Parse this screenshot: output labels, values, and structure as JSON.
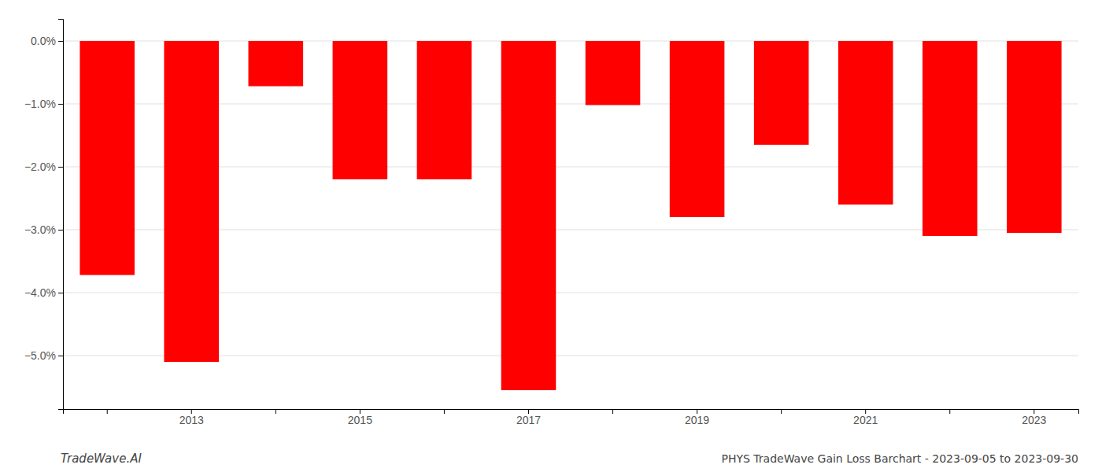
{
  "chart_data": {
    "type": "bar",
    "categories": [
      null,
      "2013",
      null,
      "2015",
      null,
      "2017",
      null,
      "2019",
      null,
      "2021",
      null,
      "2023"
    ],
    "values": [
      -3.72,
      -5.1,
      -0.72,
      -2.2,
      -2.2,
      -5.55,
      -1.02,
      -2.8,
      -1.65,
      -2.6,
      -3.1,
      -3.05
    ],
    "color": "#FF0000",
    "ylim": [
      -5.85,
      0.35
    ],
    "yticks": [
      {
        "value": 0.0,
        "label": "0.0%"
      },
      {
        "value": -1.0,
        "label": "−1.0%"
      },
      {
        "value": -2.0,
        "label": "−2.0%"
      },
      {
        "value": -3.0,
        "label": "−3.0%"
      },
      {
        "value": -4.0,
        "label": "−4.0%"
      },
      {
        "value": -5.0,
        "label": "−5.0%"
      }
    ],
    "grid": true,
    "annotations": [
      "TradeWave.AI",
      "PHYS TradeWave Gain Loss Barchart - 2023-09-05 to 2023-09-30"
    ]
  }
}
